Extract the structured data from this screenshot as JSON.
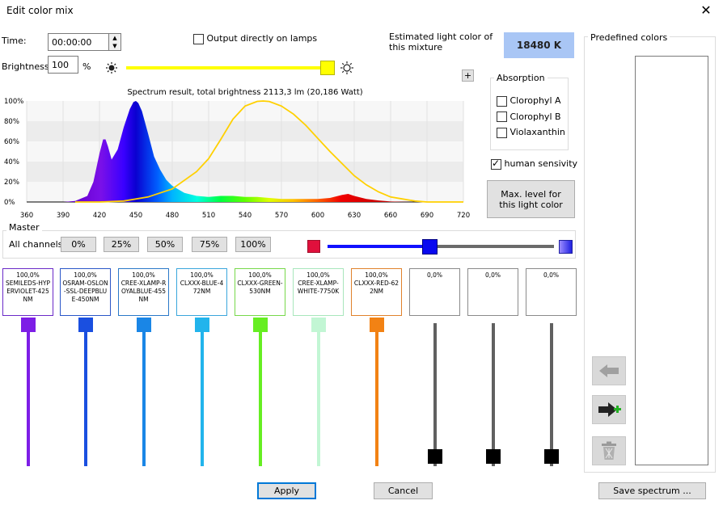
{
  "window": {
    "title": "Edit color mix",
    "close_glyph": "✕"
  },
  "time": {
    "label": "Time:",
    "value": "00:00:00"
  },
  "brightness": {
    "label": "Brightness:",
    "value": "100",
    "unit": "%",
    "slider_level": 1.0
  },
  "output": {
    "label": "Output directly on lamps",
    "checked": false
  },
  "estimate": {
    "label": "Estimated light color of this mixture",
    "value": "18480 K",
    "color": "#a9c6f5"
  },
  "plus_label": "+",
  "absorption": {
    "title": "Absorption",
    "items": [
      {
        "label": "Clorophyl A",
        "checked": false
      },
      {
        "label": "Clorophyl B",
        "checked": false
      },
      {
        "label": "Violaxanthin",
        "checked": false
      }
    ]
  },
  "human": {
    "label": "human sensivity",
    "checked": true
  },
  "maxlevel_label": "Max. level for this light color",
  "chart_data": {
    "type": "area",
    "title": "Spectrum result, total brightness 2113,3 lm (20,186 Watt)",
    "xlim": [
      360,
      720
    ],
    "ylim": [
      0,
      100
    ],
    "x_ticks": [
      "360",
      "390",
      "420",
      "450",
      "480",
      "510",
      "540",
      "570",
      "600",
      "630",
      "660",
      "690",
      "720"
    ],
    "y_ticks": [
      "0%",
      "20%",
      "40%",
      "60%",
      "80%",
      "100%"
    ],
    "series": [
      {
        "x": [
          360,
          390,
          400,
          410,
          415,
          420,
          423,
          425,
          427,
          430,
          435,
          440,
          445,
          448,
          450,
          452,
          455,
          460,
          465,
          470,
          475,
          480,
          490,
          500,
          510,
          520,
          530,
          540,
          550,
          560,
          570,
          580,
          590,
          600,
          610,
          620,
          625,
          630,
          640,
          650,
          660,
          670,
          680,
          690,
          700,
          720
        ],
        "y": [
          0,
          0,
          1,
          6,
          20,
          48,
          62,
          62,
          55,
          42,
          52,
          74,
          92,
          99,
          100,
          98,
          90,
          68,
          45,
          32,
          22,
          16,
          9,
          6,
          5,
          6,
          6,
          5,
          5,
          4,
          3,
          3,
          3,
          3,
          4,
          7,
          8,
          6,
          3,
          1.5,
          0.5,
          0.2,
          0,
          0,
          0,
          0
        ]
      },
      {
        "x": [
          400,
          420,
          440,
          460,
          480,
          500,
          510,
          520,
          530,
          540,
          550,
          555,
          560,
          570,
          580,
          590,
          600,
          610,
          620,
          630,
          640,
          650,
          660,
          670,
          680,
          690,
          700,
          720
        ],
        "y": [
          0,
          0,
          1,
          5,
          13,
          30,
          43,
          62,
          82,
          95,
          99.6,
          100,
          99.5,
          95,
          87,
          76,
          63,
          50,
          38,
          26,
          17,
          10,
          5,
          3,
          1,
          0,
          0,
          0
        ]
      }
    ]
  },
  "master": {
    "title": "Master",
    "all_label": "All channels",
    "presets": [
      "0%",
      "25%",
      "50%",
      "75%",
      "100%"
    ],
    "slider_level": 0.45
  },
  "channels": [
    {
      "value": "100,0%",
      "name": "SEMILEDS-HYPERVIOLET-425NM",
      "color": "#7d1ee6",
      "border": "#6a2ac8",
      "level": 1.0
    },
    {
      "value": "100,0%",
      "name": "OSRAM-OSLON-SSL-DEEPBLUE-450NM",
      "color": "#1a4fe0",
      "border": "#2a56c8",
      "level": 1.0
    },
    {
      "value": "100,0%",
      "name": "CREE-XLAMP-ROYALBLUE-455NM",
      "color": "#1a86e6",
      "border": "#2a78c8",
      "level": 1.0
    },
    {
      "value": "100,0%",
      "name": "CLXXX-BLUE-472NM",
      "color": "#22b4ec",
      "border": "#3aa6dc",
      "level": 1.0
    },
    {
      "value": "100,0%",
      "name": "CLXXX-GREEN-530NM",
      "color": "#66ee22",
      "border": "#77d84a",
      "level": 1.0
    },
    {
      "value": "100,0%",
      "name": "CREE-XLAMP-WHITE-7750K",
      "color": "#c2f6d4",
      "border": "#a8e6bc",
      "level": 1.0
    },
    {
      "value": "100,0%",
      "name": "CLXXX-RED-622NM",
      "color": "#f28214",
      "border": "#e0822c",
      "level": 1.0
    },
    {
      "value": "0,0%",
      "name": "",
      "color": "#606060",
      "border": "#8a8a8a",
      "level": 0.0
    },
    {
      "value": "0,0%",
      "name": "",
      "color": "#606060",
      "border": "#8a8a8a",
      "level": 0.0
    },
    {
      "value": "0,0%",
      "name": "",
      "color": "#606060",
      "border": "#8a8a8a",
      "level": 0.0
    }
  ],
  "predefined": {
    "title": "Predefined colors"
  },
  "buttons": {
    "apply": "Apply",
    "cancel": "Cancel",
    "save": "Save spectrum ..."
  }
}
